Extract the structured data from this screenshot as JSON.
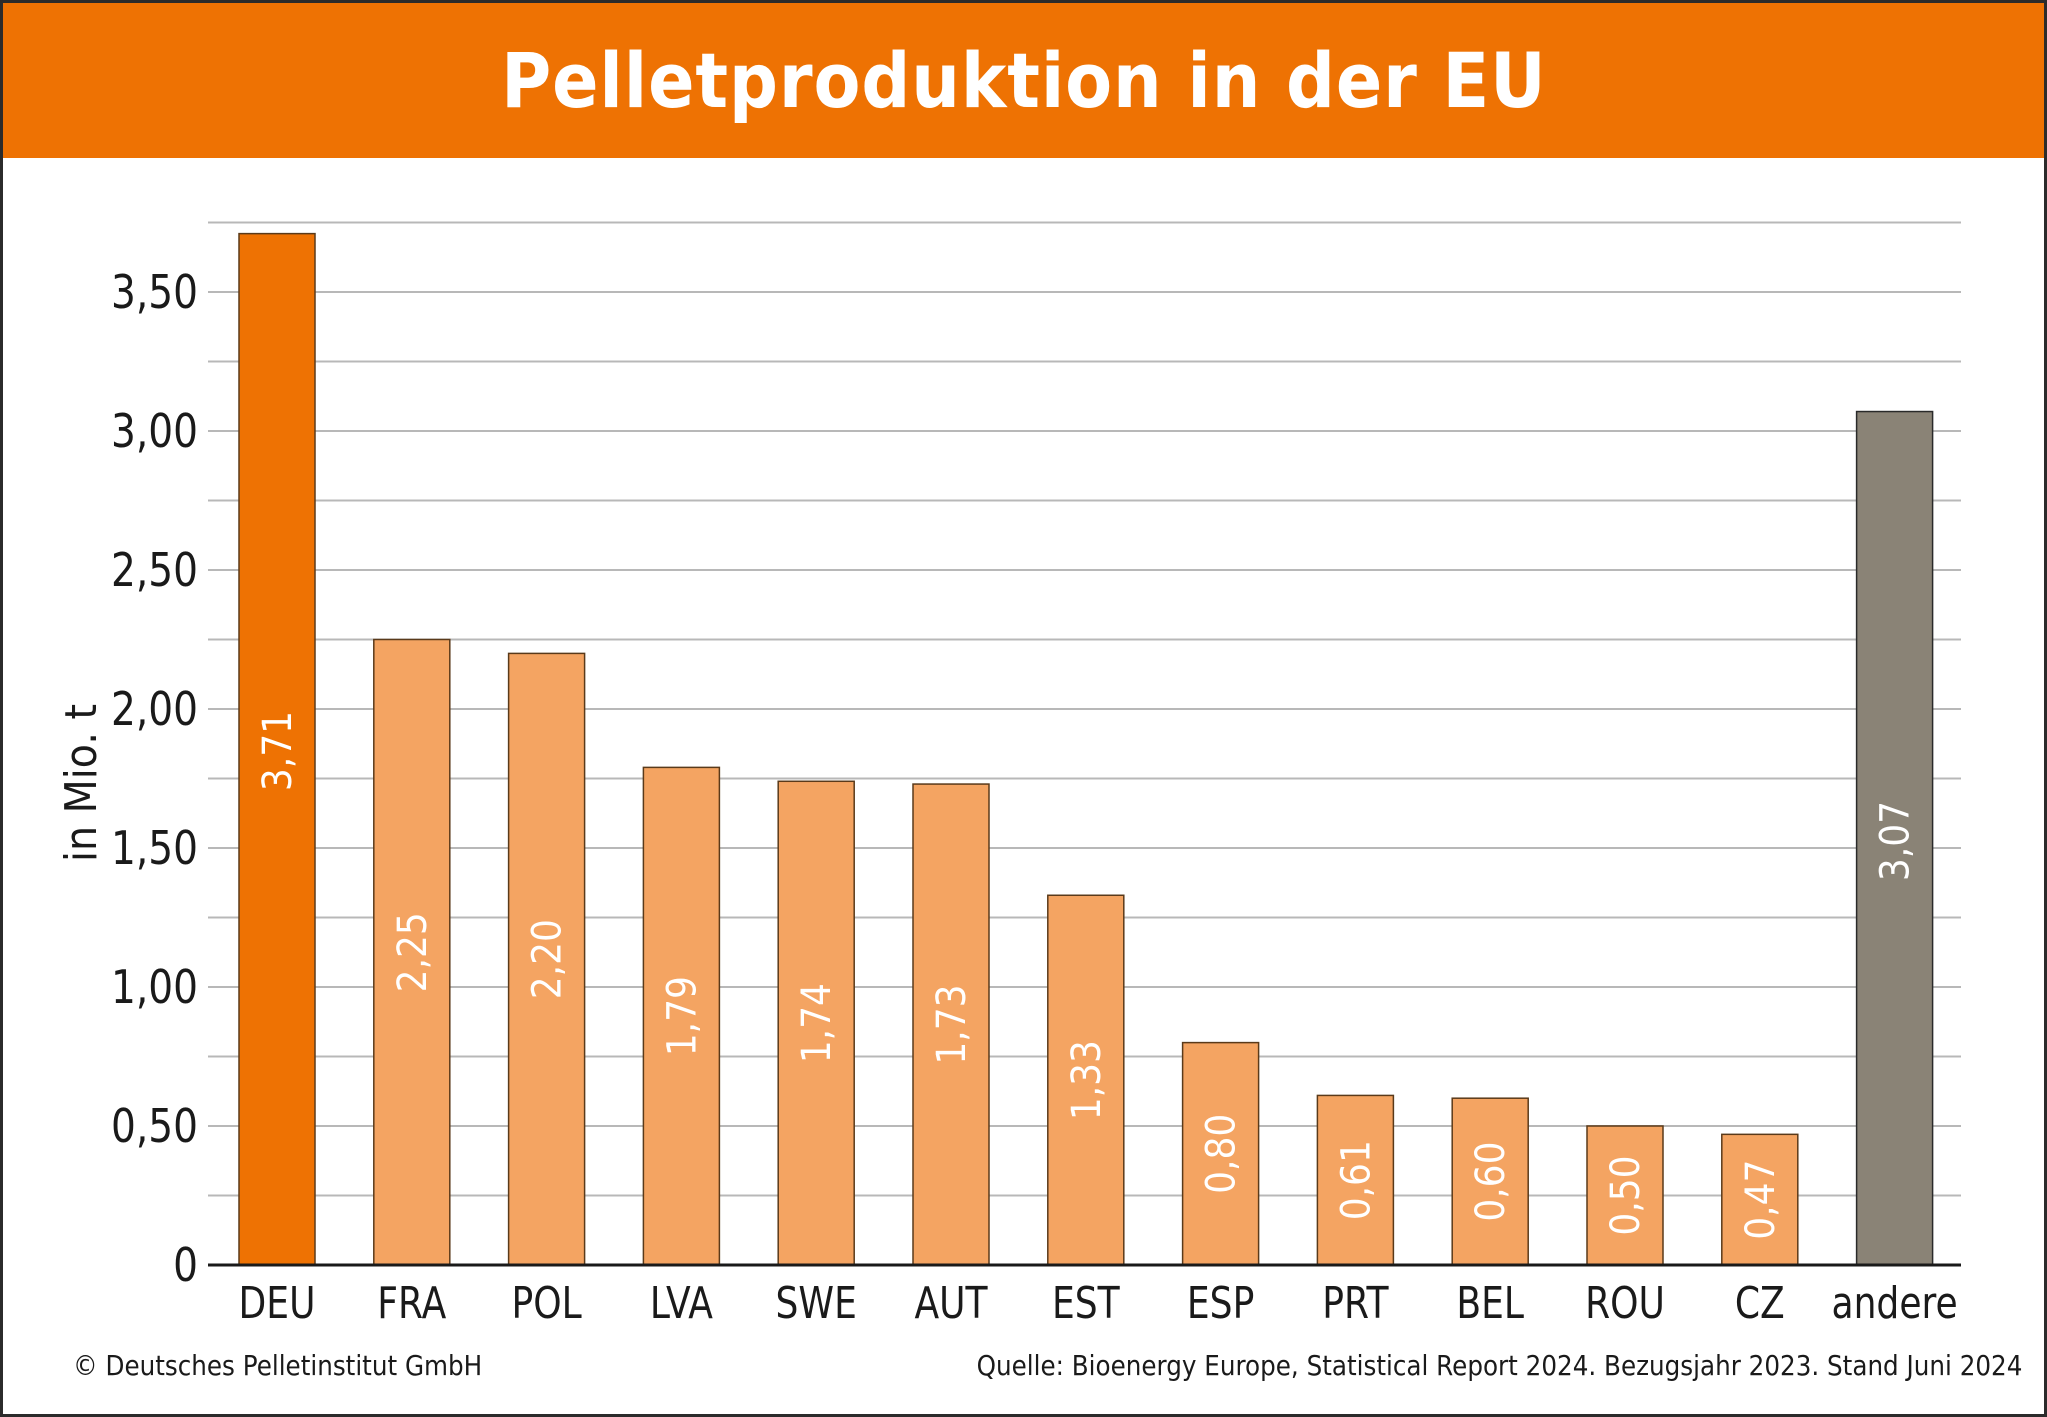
{
  "header": {
    "title": "Pelletproduktion in der EU"
  },
  "footer": {
    "copyright": "© Deutsches Pelletinstitut GmbH",
    "source": "Quelle: Bioenergy Europe, Statistical Report 2024. Bezugsjahr 2023. Stand Juni 2024"
  },
  "colors": {
    "header_bg": "#ee7203",
    "highlight_bar": "#ee7203",
    "regular_bar": "#f4a462",
    "other_bar": "#8a8376",
    "grid": "#b8b8b8",
    "axis": "#1a1a1a",
    "bar_label": "#ffffff"
  },
  "chart_data": {
    "type": "bar",
    "title": "Pelletproduktion in der EU",
    "xlabel": "",
    "ylabel": "in Mio. t",
    "ylim": [
      0,
      3.75
    ],
    "grid": true,
    "grid_step": 0.25,
    "y_ticks": [
      0,
      0.5,
      1.0,
      1.5,
      2.0,
      2.5,
      3.0,
      3.5
    ],
    "y_tick_labels": [
      "0",
      "0,50",
      "1,00",
      "1,50",
      "2,00",
      "2,50",
      "3,00",
      "3,50"
    ],
    "categories": [
      "DEU",
      "FRA",
      "POL",
      "LVA",
      "SWE",
      "AUT",
      "EST",
      "ESP",
      "PRT",
      "BEL",
      "ROU",
      "CZ",
      "andere"
    ],
    "values": [
      3.71,
      2.25,
      2.2,
      1.79,
      1.74,
      1.73,
      1.33,
      0.8,
      0.61,
      0.6,
      0.5,
      0.47,
      3.07
    ],
    "value_labels": [
      "3,71",
      "2,25",
      "2,20",
      "1,79",
      "1,74",
      "1,73",
      "1,33",
      "0,80",
      "0,61",
      "0,60",
      "0,50",
      "0,47",
      "3,07"
    ],
    "bar_styles": [
      "highlight",
      "regular",
      "regular",
      "regular",
      "regular",
      "regular",
      "regular",
      "regular",
      "regular",
      "regular",
      "regular",
      "regular",
      "other"
    ],
    "legend": "none"
  }
}
